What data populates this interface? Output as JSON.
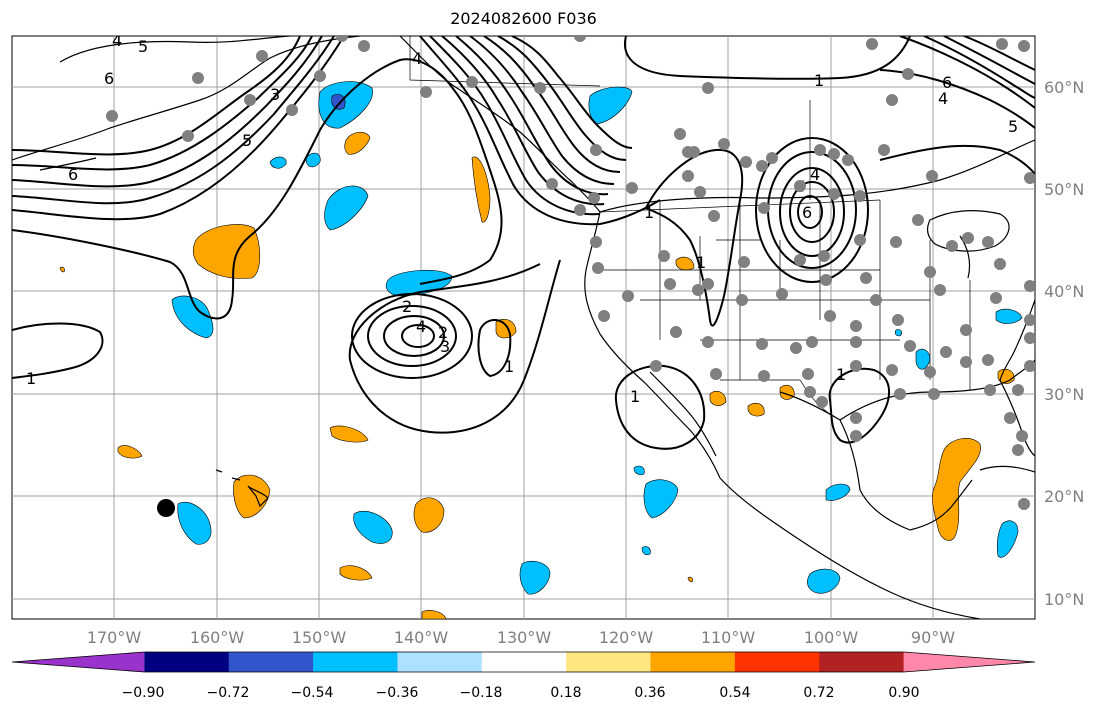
{
  "title": "2024082600 F036",
  "longitude_labels": [
    "170°W",
    "160°W",
    "150°W",
    "140°W",
    "130°W",
    "120°W",
    "110°W",
    "100°W",
    "90°W"
  ],
  "latitude_labels": [
    "60°N",
    "50°N",
    "40°N",
    "30°N",
    "20°N",
    "10°N"
  ],
  "colorbar": {
    "ticks": [
      "−0.90",
      "−0.72",
      "−0.54",
      "−0.36",
      "−0.18",
      "0.18",
      "0.36",
      "0.54",
      "0.72",
      "0.90"
    ],
    "colors": [
      "#9933cc",
      "#000080",
      "#3355cc",
      "#00bfff",
      "#aee0ff",
      "#ffffff",
      "#ffe680",
      "#ffa500",
      "#ff3300",
      "#b22222",
      "#ff88aa"
    ]
  },
  "contour_labels": [
    "6",
    "5",
    "4",
    "3",
    "2",
    "1",
    "6",
    "5",
    "4",
    "1",
    "2",
    "4",
    "3",
    "1",
    "1",
    "1",
    "6",
    "5",
    "4",
    "1",
    "1",
    "6",
    "5",
    "4"
  ],
  "colors": {
    "grid": "#a0a0a0",
    "station": "#808080",
    "positive": "#ffa500",
    "negative": "#00bfff",
    "negative_core": "#3355cc"
  }
}
